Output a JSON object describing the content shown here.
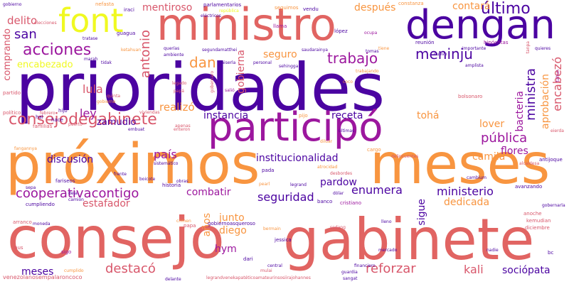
{
  "palette": [
    "#0d0887",
    "#6a00a8",
    "#b12a90",
    "#e16462",
    "#fca636",
    "#f0f921"
  ],
  "words": [
    {
      "text": "prioridades",
      "color": "#4b03a1"
    },
    {
      "text": "próximos",
      "color": "#f89540"
    },
    {
      "text": "meses",
      "color": "#f89540"
    },
    {
      "text": "consejo",
      "color": "#e16462"
    },
    {
      "text": "gabinete",
      "color": "#e16462"
    },
    {
      "text": "participó",
      "color": "#9c179e"
    },
    {
      "text": "ministro",
      "color": "#e16462"
    },
    {
      "text": "dengan",
      "color": "#4b03a1"
    },
    {
      "text": "font",
      "color": "#f0f921"
    },
    {
      "text": "consejodegabinete",
      "color": "#d8576b"
    },
    {
      "text": "acciones",
      "color": "#9c179e"
    },
    {
      "text": "encabezado",
      "color": "#f0f921"
    },
    {
      "text": "trabajo",
      "color": "#9c179e"
    },
    {
      "text": "meninju",
      "color": "#4b03a1"
    },
    {
      "text": "antonio",
      "color": "#d8576b"
    },
    {
      "text": "dan",
      "color": "#f89540"
    },
    {
      "text": "seguro",
      "color": "#f89540"
    },
    {
      "text": "último",
      "color": "#4b03a1"
    },
    {
      "text": "mentiroso",
      "color": "#d8576b"
    },
    {
      "text": "después",
      "color": "#f89540"
    },
    {
      "text": "contará",
      "color": "#f89540"
    },
    {
      "text": "delito",
      "color": "#d8576b"
    },
    {
      "text": "san",
      "color": "#4b03a1"
    },
    {
      "text": "comprando",
      "color": "#d8576b"
    },
    {
      "text": "lula",
      "color": "#d8576b"
    },
    {
      "text": "ley",
      "color": "#9c179e"
    },
    {
      "text": "zamudio",
      "color": "#4b03a1"
    },
    {
      "text": "realizó",
      "color": "#f89540"
    },
    {
      "text": "instancia",
      "color": "#4b03a1"
    },
    {
      "text": "receta",
      "color": "#4b03a1"
    },
    {
      "text": "tohá",
      "color": "#f89540"
    },
    {
      "text": "lover",
      "color": "#f89540"
    },
    {
      "text": "pública",
      "color": "#9c179e"
    },
    {
      "text": "flores",
      "color": "#9c179e"
    },
    {
      "text": "camila",
      "color": "#f89540"
    },
    {
      "text": "ministra",
      "color": "#4b03a1"
    },
    {
      "text": "bacteria",
      "color": "#9c179e"
    },
    {
      "text": "aprobación",
      "color": "#f89540"
    },
    {
      "text": "encabezó",
      "color": "#d8576b"
    },
    {
      "text": "gobierna",
      "color": "#d8576b"
    },
    {
      "text": "país",
      "color": "#9c179e"
    },
    {
      "text": "discusión",
      "color": "#4b03a1"
    },
    {
      "text": "institucionalidad",
      "color": "#4b03a1"
    },
    {
      "text": "pardow",
      "color": "#4b03a1"
    },
    {
      "text": "cooperativacontigo",
      "color": "#9c179e"
    },
    {
      "text": "combatir",
      "color": "#9c179e"
    },
    {
      "text": "seguridad",
      "color": "#4b03a1"
    },
    {
      "text": "enumera",
      "color": "#4b03a1"
    },
    {
      "text": "ministerio",
      "color": "#4b03a1"
    },
    {
      "text": "estafador",
      "color": "#d8576b"
    },
    {
      "text": "dedicada",
      "color": "#f89540"
    },
    {
      "text": "sigue",
      "color": "#4b03a1"
    },
    {
      "text": "años",
      "color": "#f89540"
    },
    {
      "text": "junto",
      "color": "#f89540"
    },
    {
      "text": "diego",
      "color": "#f89540"
    },
    {
      "text": "hym",
      "color": "#9c179e"
    },
    {
      "text": "destacó",
      "color": "#d8576b"
    },
    {
      "text": "reforzar",
      "color": "#d8576b"
    },
    {
      "text": "kali",
      "color": "#d8576b"
    },
    {
      "text": "sociópata",
      "color": "#4b03a1"
    },
    {
      "text": "venezolanosempalaroncoco",
      "color": "#d8576b"
    },
    {
      "text": "fariseos",
      "color": "#4b03a1"
    },
    {
      "text": "cumpliendo",
      "color": "#4b03a1"
    },
    {
      "text": "historia",
      "color": "#4b03a1"
    },
    {
      "text": "gobiernoasqueroso",
      "color": "#4b03a1"
    },
    {
      "text": "legrandvenekapatéticoamateurinsosiirajohannes",
      "color": "#d8576b"
    },
    {
      "text": "nefasta",
      "color": "#f89540"
    },
    {
      "text": "parlamentarios",
      "color": "#4b03a1"
    },
    {
      "text": "seguimos",
      "color": "#f89540"
    },
    {
      "text": "vendu",
      "color": "#4b03a1"
    },
    {
      "text": "iraci",
      "color": "#4b03a1"
    },
    {
      "text": "república",
      "color": "#f0f921"
    },
    {
      "text": "constanza",
      "color": "#f89540"
    },
    {
      "text": "elecciones",
      "color": "#d8576b"
    },
    {
      "text": "eléctricos",
      "color": "#4b03a1"
    },
    {
      "text": "llama",
      "color": "#9c179e"
    },
    {
      "text": "lópez",
      "color": "#4b03a1"
    },
    {
      "text": "ocupa",
      "color": "#9c179e"
    },
    {
      "text": "guagua",
      "color": "#4b03a1"
    },
    {
      "text": "tratase",
      "color": "#4b03a1"
    },
    {
      "text": "querías",
      "color": "#4b03a1"
    },
    {
      "text": "segundamatthei",
      "color": "#4b03a1"
    },
    {
      "text": "kaiserla",
      "color": "#4b03a1"
    },
    {
      "text": "personal",
      "color": "#4b03a1"
    },
    {
      "text": "sehingga",
      "color": "#4b03a1"
    },
    {
      "text": "saudarainya",
      "color": "#4b03a1"
    },
    {
      "text": "reunión",
      "color": "#4b03a1"
    },
    {
      "text": "hipócritas",
      "color": "#9c179e"
    },
    {
      "text": "importante",
      "color": "#4b03a1"
    },
    {
      "text": "quieres",
      "color": "#4b03a1"
    },
    {
      "text": "amplista",
      "color": "#4b03a1"
    },
    {
      "text": "partido",
      "color": "#d8576b"
    },
    {
      "text": "político",
      "color": "#d8576b"
    },
    {
      "text": "familias",
      "color": "#d8576b"
    },
    {
      "text": "fangannya",
      "color": "#f89540"
    },
    {
      "text": "coco",
      "color": "#f89540"
    },
    {
      "text": "bolsonaro",
      "color": "#d8576b"
    },
    {
      "text": "pijo",
      "color": "#f89540"
    },
    {
      "text": "cargo",
      "color": "#f89540"
    },
    {
      "text": "delincuentes",
      "color": "#d8576b"
    },
    {
      "text": "antijoque",
      "color": "#4b03a1"
    },
    {
      "text": "pada",
      "color": "#4b03a1"
    },
    {
      "text": "boicote",
      "color": "#4b03a1"
    },
    {
      "text": "obras",
      "color": "#4b03a1"
    },
    {
      "text": "pearl",
      "color": "#f89540"
    },
    {
      "text": "legrand",
      "color": "#4b03a1"
    },
    {
      "text": "banco",
      "color": "#4b03a1"
    },
    {
      "text": "cristiano",
      "color": "#9c179e"
    },
    {
      "text": "avanzando",
      "color": "#4b03a1"
    },
    {
      "text": "dólar",
      "color": "#4b03a1"
    },
    {
      "text": "bermain",
      "color": "#f89540"
    },
    {
      "text": "jessica",
      "color": "#4b03a1"
    },
    {
      "text": "papa",
      "color": "#d8576b"
    },
    {
      "text": "crimen",
      "color": "#f89540"
    },
    {
      "text": "central",
      "color": "#4b03a1"
    },
    {
      "text": "mulai",
      "color": "#d8576b"
    },
    {
      "text": "financiero",
      "color": "#4b03a1"
    },
    {
      "text": "guardia",
      "color": "#4b03a1"
    },
    {
      "text": "sangat",
      "color": "#4b03a1"
    },
    {
      "text": "mercado",
      "color": "#4b03a1"
    },
    {
      "text": "nadie",
      "color": "#4b03a1"
    },
    {
      "text": "delante",
      "color": "#4b03a1"
    },
    {
      "text": "cumplido",
      "color": "#f89540"
    },
    {
      "text": "bus",
      "color": "#d8576b"
    },
    {
      "text": "arranco",
      "color": "#d8576b"
    },
    {
      "text": "anoche",
      "color": "#d8576b"
    },
    {
      "text": "diciembre",
      "color": "#d8576b"
    },
    {
      "text": "kemudian",
      "color": "#d8576b"
    },
    {
      "text": "bc",
      "color": "#4b03a1"
    },
    {
      "text": "sigo",
      "color": "#9c179e"
    },
    {
      "text": "dari",
      "color": "#4b03a1"
    },
    {
      "text": "sepa",
      "color": "#4b03a1"
    },
    {
      "text": "deja",
      "color": "#4b03a1"
    },
    {
      "text": "camión",
      "color": "#4b03a1"
    },
    {
      "text": "moneda",
      "color": "#4b03a1"
    },
    {
      "text": "hal",
      "color": "#4b03a1"
    },
    {
      "text": "hace",
      "color": "#4b03a1"
    },
    {
      "text": "hijo",
      "color": "#4b03a1"
    },
    {
      "text": "febrero",
      "color": "#d8576b"
    },
    {
      "text": "gobierno",
      "color": "#f89540"
    },
    {
      "text": "cambium",
      "color": "#4b03a1"
    },
    {
      "text": "ambiente",
      "color": "#4b03a1"
    },
    {
      "text": "legado",
      "color": "#d8576b"
    },
    {
      "text": "papá",
      "color": "#d8576b"
    },
    {
      "text": "salió",
      "color": "#9c179e"
    },
    {
      "text": "marah",
      "color": "#4b03a1"
    },
    {
      "text": "tidak",
      "color": "#4b03a1"
    },
    {
      "text": "ketahuan",
      "color": "#f89540"
    },
    {
      "text": "eierda",
      "color": "#d8576b"
    },
    {
      "text": "trabajando",
      "color": "#f89540"
    },
    {
      "text": "apenas",
      "color": "#d8576b"
    },
    {
      "text": "embuat",
      "color": "#4b03a1"
    },
    {
      "text": "enteron",
      "color": "#d8576b"
    },
    {
      "text": "viviendas",
      "color": "#d8576b"
    },
    {
      "text": "sistemático",
      "color": "#4b03a1"
    },
    {
      "text": "frente",
      "color": "#4b03a1"
    },
    {
      "text": "últimas",
      "color": "#4b03a1"
    },
    {
      "text": "diluar",
      "color": "#f89540"
    },
    {
      "text": "atrocidad",
      "color": "#f89540"
    },
    {
      "text": "desbordes",
      "color": "#d8576b"
    },
    {
      "text": "alcaldesa",
      "color": "#d8576b"
    },
    {
      "text": "tomas",
      "color": "#4b03a1"
    },
    {
      "text": "sedang",
      "color": "#d8576b"
    },
    {
      "text": "lleno",
      "color": "#4b03a1"
    },
    {
      "text": "gobernarla",
      "color": "#4b03a1"
    },
    {
      "text": "tiene",
      "color": "#f89540"
    },
    {
      "text": "nuevo",
      "color": "#4b03a1"
    },
    {
      "text": "tahun",
      "color": "#9c179e"
    },
    {
      "text": "tanpa",
      "color": "#d8576b"
    },
    {
      "text": "quinta",
      "color": "#d8576b"
    },
    {
      "text": "puerto",
      "color": "#d8576b"
    },
    {
      "text": "gobernaro",
      "color": "#d8576b"
    },
    {
      "text": "gobierno",
      "color": "#4b03a1"
    }
  ]
}
